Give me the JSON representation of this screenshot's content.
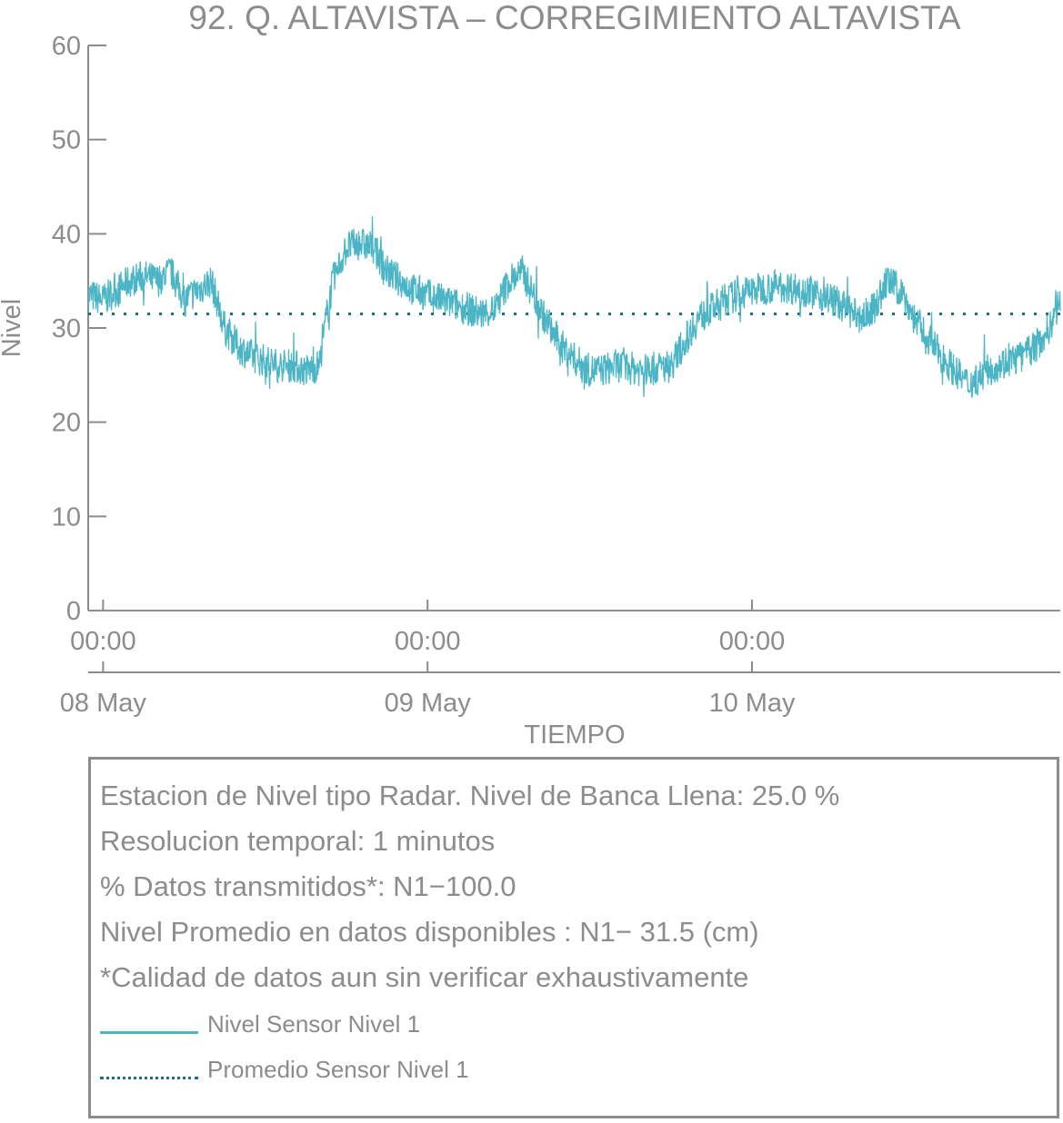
{
  "chart_data": {
    "type": "line",
    "title": "92. Q. ALTAVISTA – CORREGIMIENTO ALTAVISTA",
    "xlabel": "TIEMPO",
    "ylabel": "Nivel",
    "ylim": [
      0,
      60
    ],
    "yticks": [
      0,
      10,
      20,
      30,
      40,
      50,
      60
    ],
    "xlim_hours": [
      -1.1,
      70.8
    ],
    "x_ticks": [
      {
        "hour": 0,
        "time": "00:00",
        "date": "08 May"
      },
      {
        "hour": 24,
        "time": "00:00",
        "date": "09 May"
      },
      {
        "hour": 48,
        "time": "00:00",
        "date": "10 May"
      }
    ],
    "grid": false,
    "colors": {
      "sensor": "#4bb5c5",
      "mean": "#1e6f86",
      "axis": "#8c8c8c"
    },
    "series": [
      {
        "name": "Nivel Sensor Nivel 1",
        "style": "solid",
        "hours": [
          -1.1,
          0,
          1,
          2,
          3,
          4,
          5,
          6,
          7,
          8,
          9,
          10,
          11,
          12,
          13,
          14,
          15,
          16,
          16.5,
          17,
          18,
          19,
          20,
          21,
          22,
          23,
          24,
          25,
          26,
          27,
          28,
          29,
          30,
          31,
          32,
          33,
          34,
          35,
          36,
          36.8,
          38,
          40,
          42,
          44,
          46,
          48,
          50,
          52,
          53,
          54,
          55,
          56,
          57,
          58,
          59,
          60,
          61,
          62,
          63,
          64,
          65,
          66,
          67,
          68,
          69,
          70,
          70.8
        ],
        "values": [
          33.5,
          33,
          34,
          35,
          35.5,
          35,
          36,
          33,
          34,
          35,
          30,
          28,
          27,
          26.5,
          26,
          26,
          25.5,
          26,
          31,
          35,
          38.5,
          39,
          38.5,
          36,
          35,
          34,
          33.5,
          33,
          32.5,
          32,
          31.5,
          32,
          35,
          36,
          33,
          30,
          28,
          26.5,
          25.5,
          25.5,
          26,
          25.5,
          26,
          31,
          33,
          34,
          34.5,
          34,
          33.5,
          33,
          32,
          31,
          32,
          35,
          34,
          31,
          29,
          27,
          25.5,
          24,
          25,
          26,
          26.5,
          27,
          28,
          30,
          33
        ]
      },
      {
        "name": "Promedio Sensor Nivel 1",
        "style": "dotted",
        "hours": [
          -1.1,
          70.8
        ],
        "values": [
          31.5,
          31.5
        ]
      }
    ]
  },
  "info": {
    "lines": [
      "Estacion de Nivel tipo Radar. Nivel de Banca Llena: 25.0 %",
      "Resolucion temporal: 1 minutos",
      "% Datos transmitidos*: N1−100.0",
      "Nivel Promedio en datos disponibles : N1− 31.5 (cm)",
      "*Calidad de datos aun sin verificar exhaustivamente"
    ],
    "legend": [
      {
        "label": "Nivel Sensor Nivel 1",
        "style": "solid"
      },
      {
        "label": "Promedio Sensor Nivel 1",
        "style": "dotted"
      }
    ]
  }
}
